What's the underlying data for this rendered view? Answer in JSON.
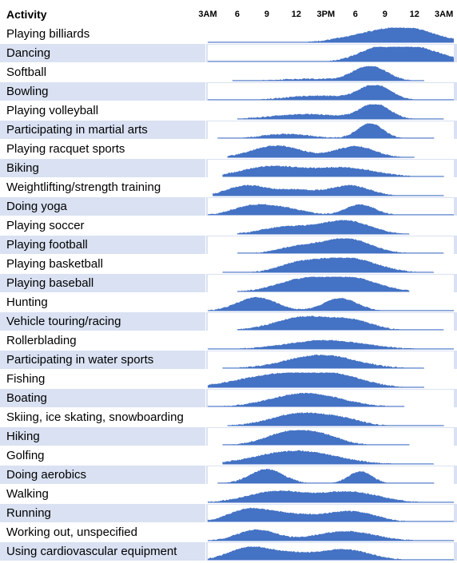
{
  "chart_data": {
    "type": "area",
    "header": {
      "label": "Activity"
    },
    "x_ticks": [
      {
        "label": "3AM",
        "hour": 3
      },
      {
        "label": "6",
        "hour": 6
      },
      {
        "label": "9",
        "hour": 9
      },
      {
        "label": "12",
        "hour": 12
      },
      {
        "label": "3PM",
        "hour": 15
      },
      {
        "label": "6",
        "hour": 18
      },
      {
        "label": "9",
        "hour": 21
      },
      {
        "label": "12",
        "hour": 24
      },
      {
        "label": "3AM",
        "hour": 27
      }
    ],
    "x_range_hours": [
      3,
      28
    ],
    "series_color": "#4472c4",
    "rows": [
      {
        "label": "Playing billiards",
        "peaks": [
          [
            23,
            3,
            1.0
          ],
          [
            18,
            2.5,
            0.3
          ]
        ],
        "start": 3,
        "end": 28
      },
      {
        "label": "Dancing",
        "peaks": [
          [
            23.5,
            3,
            1.0
          ],
          [
            20,
            2,
            0.5
          ]
        ],
        "start": 3,
        "end": 28
      },
      {
        "label": "Softball",
        "peaks": [
          [
            19.5,
            1.7,
            1.0
          ],
          [
            13,
            3,
            0.15
          ]
        ],
        "start": 5.5,
        "end": 25
      },
      {
        "label": "Bowling",
        "peaks": [
          [
            20,
            1.6,
            1.0
          ],
          [
            14,
            3,
            0.3
          ]
        ],
        "start": 3,
        "end": 28
      },
      {
        "label": "Playing volleyball",
        "peaks": [
          [
            20,
            1.5,
            1.0
          ],
          [
            13,
            3.5,
            0.35
          ]
        ],
        "start": 6,
        "end": 27
      },
      {
        "label": "Participating in martial arts",
        "peaks": [
          [
            19.5,
            1.3,
            1.0
          ],
          [
            11,
            2.5,
            0.3
          ]
        ],
        "start": 4,
        "end": 26
      },
      {
        "label": "Playing racquet sports",
        "peaks": [
          [
            10,
            2.5,
            0.8
          ],
          [
            18,
            2,
            0.75
          ]
        ],
        "start": 5,
        "end": 24
      },
      {
        "label": "Biking",
        "peaks": [
          [
            9.5,
            3,
            0.7
          ],
          [
            17,
            3,
            0.6
          ]
        ],
        "start": 4.5,
        "end": 27
      },
      {
        "label": "Weightlifting/strength training",
        "peaks": [
          [
            7,
            2,
            0.7
          ],
          [
            17.5,
            2,
            0.7
          ],
          [
            12,
            2,
            0.4
          ]
        ],
        "start": 3.5,
        "end": 27
      },
      {
        "label": "Doing yoga",
        "peaks": [
          [
            7.5,
            2,
            0.6
          ],
          [
            18.5,
            1.5,
            0.7
          ],
          [
            11,
            2,
            0.4
          ]
        ],
        "start": 3,
        "end": 28
      },
      {
        "label": "Playing soccer",
        "peaks": [
          [
            17,
            2.5,
            0.9
          ],
          [
            11,
            2.5,
            0.5
          ]
        ],
        "start": 6,
        "end": 23.5
      },
      {
        "label": "Playing football",
        "peaks": [
          [
            17,
            2.5,
            1.0
          ],
          [
            12,
            2,
            0.4
          ]
        ],
        "start": 6,
        "end": 27
      },
      {
        "label": "Playing basketball",
        "peaks": [
          [
            17,
            3,
            1.0
          ],
          [
            12,
            2,
            0.5
          ]
        ],
        "start": 4.5,
        "end": 26
      },
      {
        "label": "Playing baseball",
        "peaks": [
          [
            17,
            3,
            1.0
          ],
          [
            12,
            2.5,
            0.6
          ]
        ],
        "start": 6,
        "end": 23.5
      },
      {
        "label": "Hunting",
        "peaks": [
          [
            8,
            2,
            0.9
          ],
          [
            16.5,
            1.7,
            0.85
          ]
        ],
        "start": 3,
        "end": 28
      },
      {
        "label": "Vehicle touring/racing",
        "peaks": [
          [
            13,
            3,
            0.9
          ],
          [
            18,
            2,
            0.5
          ]
        ],
        "start": 6,
        "end": 27
      },
      {
        "label": "Rollerblading",
        "peaks": [
          [
            15,
            4,
            0.6
          ]
        ],
        "start": 3,
        "end": 28
      },
      {
        "label": "Participating in water sports",
        "peaks": [
          [
            14.5,
            3.5,
            0.9
          ]
        ],
        "start": 4.5,
        "end": 25
      },
      {
        "label": "Fishing",
        "peaks": [
          [
            10,
            4,
            0.85
          ],
          [
            16,
            3,
            0.7
          ]
        ],
        "start": 3,
        "end": 25
      },
      {
        "label": "Boating",
        "peaks": [
          [
            13,
            3.5,
            0.9
          ]
        ],
        "start": 3,
        "end": 23
      },
      {
        "label": "Skiing, ice skating, snowboarding",
        "peaks": [
          [
            12.5,
            3,
            0.85
          ],
          [
            17,
            2,
            0.3
          ]
        ],
        "start": 5,
        "end": 27
      },
      {
        "label": "Hiking",
        "peaks": [
          [
            11.5,
            2.5,
            0.9
          ],
          [
            15,
            2,
            0.4
          ]
        ],
        "start": 4.5,
        "end": 23.5
      },
      {
        "label": "Golfing",
        "peaks": [
          [
            12,
            4,
            0.9
          ]
        ],
        "start": 4.5,
        "end": 26
      },
      {
        "label": "Doing aerobics",
        "peaks": [
          [
            9,
            1.7,
            0.95
          ],
          [
            18.5,
            1.2,
            0.8
          ]
        ],
        "start": 4,
        "end": 26
      },
      {
        "label": "Walking",
        "peaks": [
          [
            10,
            3,
            0.75
          ],
          [
            17.5,
            3,
            0.7
          ]
        ],
        "start": 3,
        "end": 28
      },
      {
        "label": "Running",
        "peaks": [
          [
            7,
            2,
            0.75
          ],
          [
            17.5,
            2.5,
            0.7
          ],
          [
            11,
            2.5,
            0.5
          ]
        ],
        "start": 3,
        "end": 28
      },
      {
        "label": "Working out, unspecified",
        "peaks": [
          [
            8,
            2,
            0.75
          ],
          [
            17,
            3,
            0.65
          ]
        ],
        "start": 3,
        "end": 28
      },
      {
        "label": "Using cardiovascular equipment",
        "peaks": [
          [
            7,
            2,
            0.75
          ],
          [
            17,
            2.5,
            0.7
          ],
          [
            11,
            2.5,
            0.45
          ]
        ],
        "start": 3,
        "end": 28
      }
    ]
  }
}
